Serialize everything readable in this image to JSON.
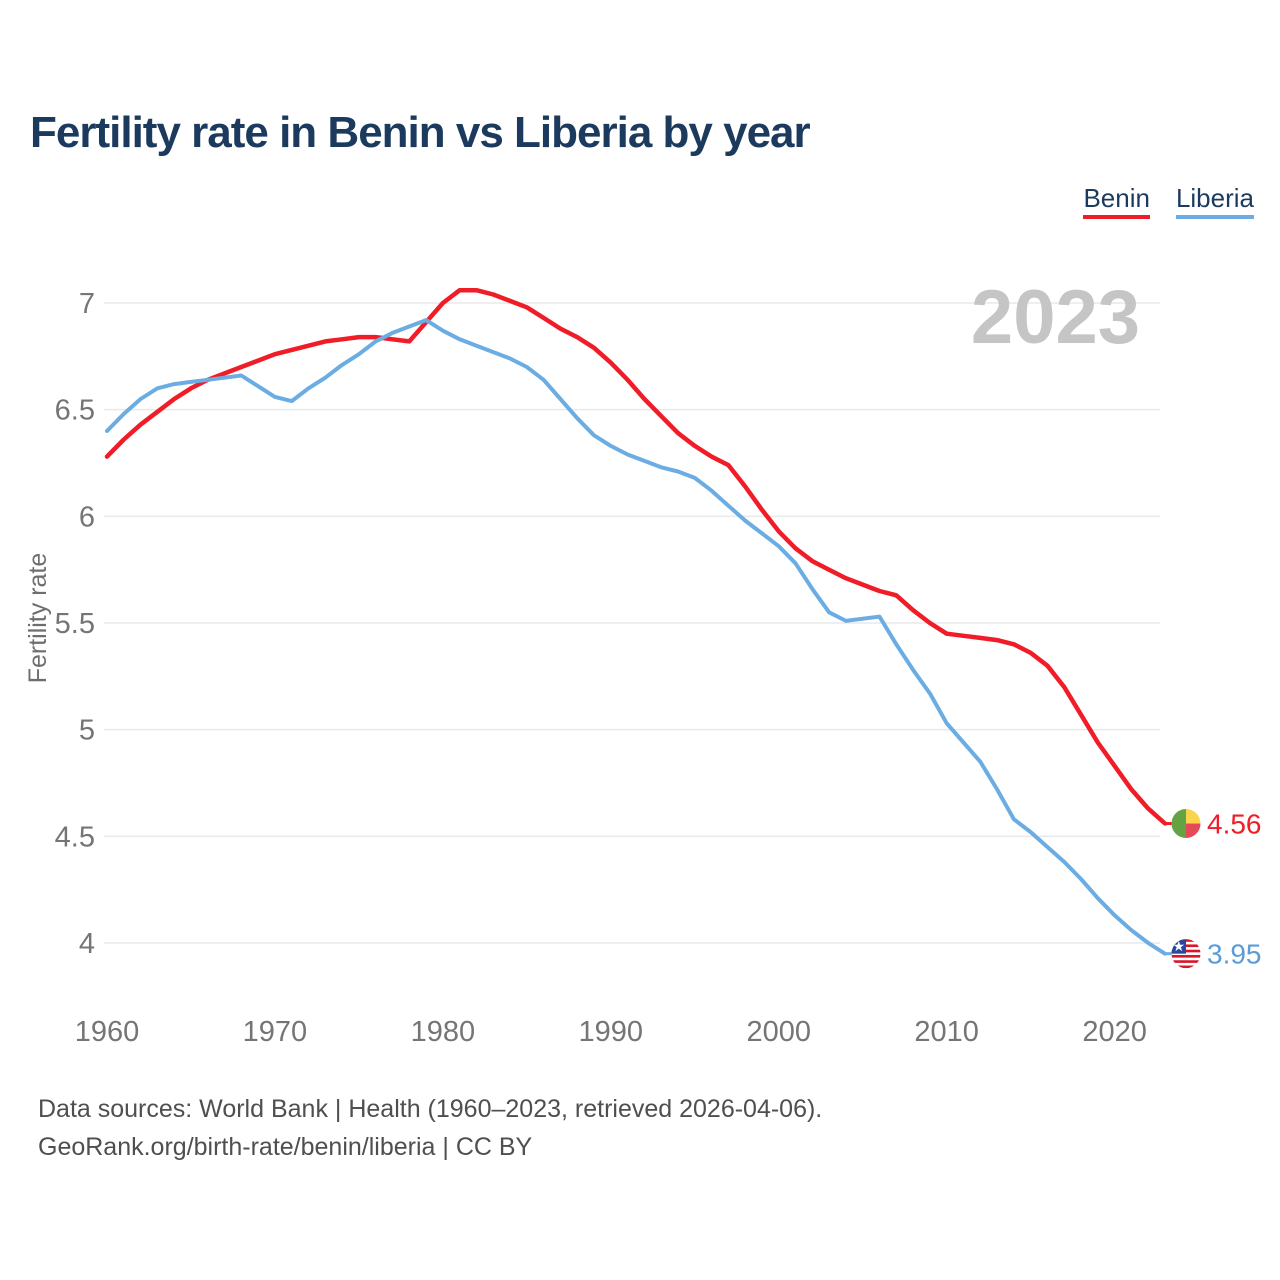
{
  "title": "Fertility rate in Benin vs Liberia by year",
  "watermark": "2023",
  "y_axis_label": "Fertility rate",
  "legend": [
    {
      "label": "Benin",
      "color": "#f01d28"
    },
    {
      "label": "Liberia",
      "color": "#6bade3"
    }
  ],
  "end_labels": [
    {
      "series": "Benin",
      "value": "4.56",
      "color": "#f01d28",
      "flag": "benin-flag-icon"
    },
    {
      "series": "Liberia",
      "value": "3.95",
      "color": "#5b9bd8",
      "flag": "liberia-flag-icon"
    }
  ],
  "source": {
    "line1": "Data sources: World Bank | Health (1960–2023, retrieved 2026-04-06).",
    "line2": "GeoRank.org/birth-rate/benin/liberia | CC BY"
  },
  "colors": {
    "title_navy": "#1c3a5e",
    "benin_red": "#f01d28",
    "liberia_blue": "#6bade3",
    "gridline": "#e9e9e9",
    "tick_gray": "#757575",
    "axis_title_gray": "#6e6e6e",
    "watermark_gray": "#c5c5c5",
    "source_gray": "#4f4f4f",
    "flag_benin_green": "#64a344",
    "flag_benin_yellow": "#fbd34c",
    "flag_benin_red": "#e44b57",
    "flag_liberia_red": "#d8172b",
    "flag_liberia_blue": "#2b479d"
  },
  "chart_data": {
    "type": "line",
    "title": "Fertility rate in Benin vs Liberia by year",
    "xlabel": "",
    "ylabel": "Fertility rate",
    "xlim": [
      1960,
      2023
    ],
    "ylim": [
      3.8,
      7.15
    ],
    "grid": "horizontal",
    "legend_position": "top-right",
    "x_label_ticks": [
      1960,
      1970,
      1980,
      1990,
      2000,
      2010,
      2020
    ],
    "y_ticks": [
      7,
      6.5,
      6,
      5.5,
      5,
      4.5,
      4
    ],
    "x": [
      1960,
      1961,
      1962,
      1963,
      1964,
      1965,
      1966,
      1967,
      1968,
      1969,
      1970,
      1971,
      1972,
      1973,
      1974,
      1975,
      1976,
      1977,
      1978,
      1979,
      1980,
      1981,
      1982,
      1983,
      1984,
      1985,
      1986,
      1987,
      1988,
      1989,
      1990,
      1991,
      1992,
      1993,
      1994,
      1995,
      1996,
      1997,
      1998,
      1999,
      2000,
      2001,
      2002,
      2003,
      2004,
      2005,
      2006,
      2007,
      2008,
      2009,
      2010,
      2011,
      2012,
      2013,
      2014,
      2015,
      2016,
      2017,
      2018,
      2019,
      2020,
      2021,
      2022,
      2023
    ],
    "series": [
      {
        "name": "Benin",
        "color": "#f01d28",
        "end_value": 4.56,
        "values": [
          6.28,
          6.36,
          6.43,
          6.49,
          6.55,
          6.6,
          6.64,
          6.67,
          6.7,
          6.73,
          6.76,
          6.78,
          6.8,
          6.82,
          6.83,
          6.84,
          6.84,
          6.83,
          6.82,
          6.91,
          7.0,
          7.06,
          7.06,
          7.04,
          7.01,
          6.98,
          6.93,
          6.88,
          6.84,
          6.79,
          6.72,
          6.64,
          6.55,
          6.47,
          6.39,
          6.33,
          6.28,
          6.24,
          6.14,
          6.03,
          5.93,
          5.85,
          5.79,
          5.75,
          5.71,
          5.68,
          5.65,
          5.63,
          5.56,
          5.5,
          5.45,
          5.44,
          5.43,
          5.42,
          5.4,
          5.36,
          5.3,
          5.2,
          5.07,
          4.94,
          4.83,
          4.72,
          4.63,
          4.56
        ]
      },
      {
        "name": "Liberia",
        "color": "#6bade3",
        "end_value": 3.95,
        "values": [
          6.4,
          6.48,
          6.55,
          6.6,
          6.62,
          6.63,
          6.64,
          6.65,
          6.66,
          6.61,
          6.56,
          6.54,
          6.6,
          6.65,
          6.71,
          6.76,
          6.82,
          6.86,
          6.89,
          6.92,
          6.87,
          6.83,
          6.8,
          6.77,
          6.74,
          6.7,
          6.64,
          6.55,
          6.46,
          6.38,
          6.33,
          6.29,
          6.26,
          6.23,
          6.21,
          6.18,
          6.12,
          6.05,
          5.98,
          5.92,
          5.86,
          5.78,
          5.66,
          5.55,
          5.51,
          5.52,
          5.53,
          5.4,
          5.28,
          5.17,
          5.03,
          4.94,
          4.85,
          4.72,
          4.58,
          4.52,
          4.45,
          4.38,
          4.3,
          4.21,
          4.13,
          4.06,
          4.0,
          3.95
        ]
      }
    ]
  }
}
